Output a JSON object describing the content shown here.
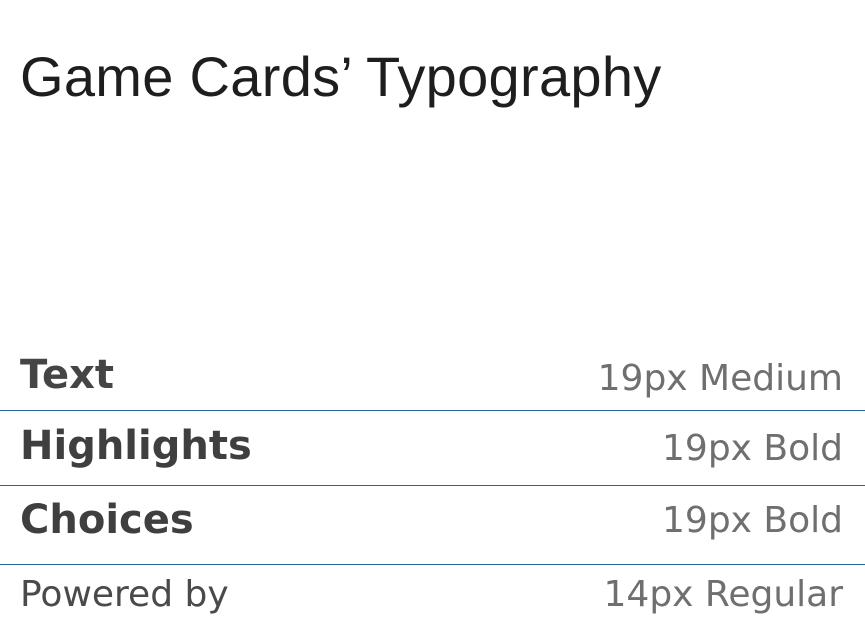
{
  "title": "Game Cards’ Typography",
  "rows": [
    {
      "label": "Text",
      "spec": "19px Medium"
    },
    {
      "label": "Highlights",
      "spec": "19px Bold"
    },
    {
      "label": "Choices",
      "spec": "19px Bold"
    },
    {
      "label": "Powered by",
      "spec": "14px Regular"
    }
  ],
  "colors": {
    "divider": "#2b6494",
    "title_text": "#1e1e1e",
    "label_text": "#454545",
    "spec_text": "#6f6f6f"
  }
}
